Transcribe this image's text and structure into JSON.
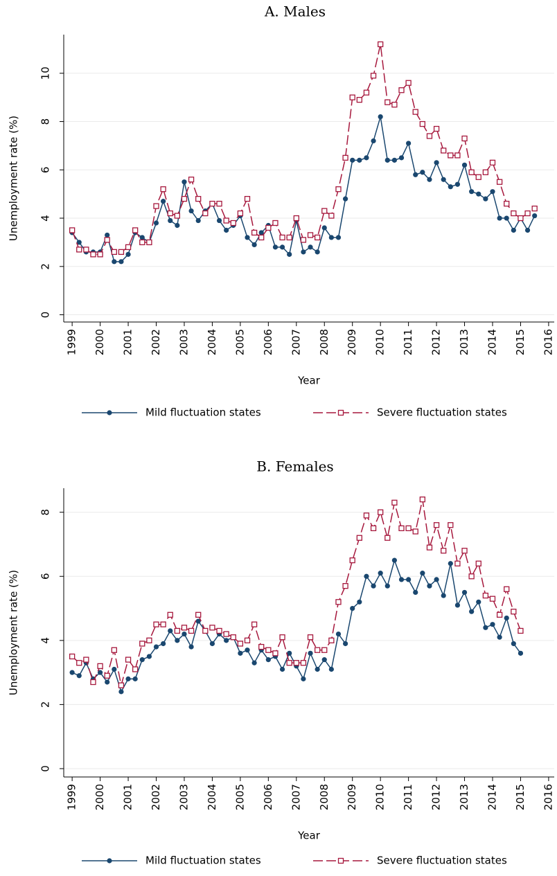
{
  "chart_data": [
    {
      "type": "line",
      "title": "A. Males",
      "xlabel": "Year",
      "ylabel": "Unemployment rate (%)",
      "x": [
        1999,
        1999.25,
        1999.5,
        1999.75,
        2000,
        2000.25,
        2000.5,
        2000.75,
        2001,
        2001.25,
        2001.5,
        2001.75,
        2002,
        2002.25,
        2002.5,
        2002.75,
        2003,
        2003.25,
        2003.5,
        2003.75,
        2004,
        2004.25,
        2004.5,
        2004.75,
        2005,
        2005.25,
        2005.5,
        2005.75,
        2006,
        2006.25,
        2006.5,
        2006.75,
        2007,
        2007.25,
        2007.5,
        2007.75,
        2008,
        2008.25,
        2008.5,
        2008.75,
        2009,
        2009.25,
        2009.5,
        2009.75,
        2010,
        2010.25,
        2010.5,
        2010.75,
        2011,
        2011.25,
        2011.5,
        2011.75,
        2012,
        2012.25,
        2012.5,
        2012.75,
        2013,
        2013.25,
        2013.5,
        2013.75,
        2014,
        2014.25,
        2014.5,
        2014.75,
        2015,
        2015.25,
        2015.5
      ],
      "series": [
        {
          "name": "Mild fluctuation states",
          "color": "#1a476f",
          "marker": "circle",
          "dash": false,
          "values": [
            3.4,
            3.0,
            2.6,
            2.6,
            2.6,
            3.3,
            2.2,
            2.2,
            2.5,
            3.4,
            3.2,
            3.0,
            3.8,
            4.7,
            3.9,
            3.7,
            5.5,
            4.3,
            3.9,
            4.3,
            4.6,
            3.9,
            3.5,
            3.7,
            4.1,
            3.2,
            2.9,
            3.4,
            3.7,
            2.8,
            2.8,
            2.5,
            3.9,
            2.6,
            2.8,
            2.6,
            3.6,
            3.2,
            3.2,
            4.8,
            6.4,
            6.4,
            6.5,
            7.2,
            8.2,
            6.4,
            6.4,
            6.5,
            7.1,
            5.8,
            5.9,
            5.6,
            6.3,
            5.6,
            5.3,
            5.4,
            6.2,
            5.1,
            5.0,
            4.8,
            5.1,
            4.0,
            4.0,
            3.5,
            4.0,
            3.5,
            4.1
          ]
        },
        {
          "name": "Severe fluctuation states",
          "color": "#a6173c",
          "marker": "square",
          "dash": true,
          "values": [
            3.5,
            2.7,
            2.7,
            2.5,
            2.5,
            3.1,
            2.6,
            2.6,
            2.8,
            3.5,
            3.0,
            3.0,
            4.5,
            5.2,
            4.2,
            4.1,
            4.8,
            5.6,
            4.8,
            4.2,
            4.6,
            4.6,
            3.9,
            3.8,
            4.2,
            4.8,
            3.4,
            3.2,
            3.6,
            3.8,
            3.2,
            3.2,
            4.0,
            3.1,
            3.3,
            3.2,
            4.3,
            4.1,
            5.2,
            6.5,
            9.0,
            8.9,
            9.2,
            9.9,
            11.2,
            8.8,
            8.7,
            9.3,
            9.6,
            8.4,
            7.9,
            7.4,
            7.7,
            6.8,
            6.6,
            6.6,
            7.3,
            5.9,
            5.7,
            5.9,
            6.3,
            5.5,
            4.6,
            4.2,
            4.0,
            4.2,
            4.4
          ]
        }
      ],
      "xlim": [
        1998.7,
        2016.2
      ],
      "xticks": [
        1999,
        2000,
        2001,
        2002,
        2003,
        2004,
        2005,
        2006,
        2007,
        2008,
        2009,
        2010,
        2011,
        2012,
        2013,
        2014,
        2015,
        2016
      ],
      "ylim": [
        -0.3,
        11.6
      ],
      "yticks": [
        0,
        2,
        4,
        6,
        8,
        10
      ],
      "grid": true
    },
    {
      "type": "line",
      "title": "B. Females",
      "xlabel": "Year",
      "ylabel": "Unemployment rate (%)",
      "x": [
        1999,
        1999.25,
        1999.5,
        1999.75,
        2000,
        2000.25,
        2000.5,
        2000.75,
        2001,
        2001.25,
        2001.5,
        2001.75,
        2002,
        2002.25,
        2002.5,
        2002.75,
        2003,
        2003.25,
        2003.5,
        2003.75,
        2004,
        2004.25,
        2004.5,
        2004.75,
        2005,
        2005.25,
        2005.5,
        2005.75,
        2006,
        2006.25,
        2006.5,
        2006.75,
        2007,
        2007.25,
        2007.5,
        2007.75,
        2008,
        2008.25,
        2008.5,
        2008.75,
        2009,
        2009.25,
        2009.5,
        2009.75,
        2010,
        2010.25,
        2010.5,
        2010.75,
        2011,
        2011.25,
        2011.5,
        2011.75,
        2012,
        2012.25,
        2012.5,
        2012.75,
        2013,
        2013.25,
        2013.5,
        2013.75,
        2014,
        2014.25,
        2014.5,
        2014.75,
        2015
      ],
      "series": [
        {
          "name": "Mild fluctuation states",
          "color": "#1a476f",
          "marker": "circle",
          "dash": false,
          "values": [
            3.0,
            2.9,
            3.3,
            2.8,
            3.0,
            2.7,
            3.1,
            2.4,
            2.8,
            2.8,
            3.4,
            3.5,
            3.8,
            3.9,
            4.3,
            4.0,
            4.2,
            3.8,
            4.6,
            4.3,
            3.9,
            4.2,
            4.0,
            4.1,
            3.6,
            3.7,
            3.3,
            3.7,
            3.4,
            3.5,
            3.1,
            3.6,
            3.2,
            2.8,
            3.6,
            3.1,
            3.4,
            3.1,
            4.2,
            3.9,
            5.0,
            5.2,
            6.0,
            5.7,
            6.1,
            5.7,
            6.5,
            5.9,
            5.9,
            5.5,
            6.1,
            5.7,
            5.9,
            5.4,
            6.4,
            5.1,
            5.5,
            4.9,
            5.2,
            4.4,
            4.5,
            4.1,
            4.7,
            3.9,
            3.6
          ]
        },
        {
          "name": "Severe fluctuation states",
          "color": "#a6173c",
          "marker": "square",
          "dash": true,
          "values": [
            3.5,
            3.3,
            3.4,
            2.7,
            3.2,
            2.9,
            3.7,
            2.6,
            3.4,
            3.1,
            3.9,
            4.0,
            4.5,
            4.5,
            4.8,
            4.3,
            4.4,
            4.3,
            4.8,
            4.3,
            4.4,
            4.3,
            4.2,
            4.1,
            3.9,
            4.0,
            4.5,
            3.8,
            3.7,
            3.6,
            4.1,
            3.3,
            3.3,
            3.3,
            4.1,
            3.7,
            3.7,
            4.0,
            5.2,
            5.7,
            6.5,
            7.2,
            7.9,
            7.5,
            8.0,
            7.2,
            8.3,
            7.5,
            7.5,
            7.4,
            8.4,
            6.9,
            7.6,
            6.8,
            7.6,
            6.4,
            6.8,
            6.0,
            6.4,
            5.4,
            5.3,
            4.8,
            5.6,
            4.9,
            4.3
          ]
        }
      ],
      "xlim": [
        1998.7,
        2016.2
      ],
      "xticks": [
        1999,
        2000,
        2001,
        2002,
        2003,
        2004,
        2005,
        2006,
        2007,
        2008,
        2009,
        2010,
        2011,
        2012,
        2013,
        2014,
        2015,
        2016
      ],
      "ylim": [
        -0.26,
        8.75
      ],
      "yticks": [
        0,
        2,
        4,
        6,
        8
      ],
      "grid": true
    }
  ]
}
